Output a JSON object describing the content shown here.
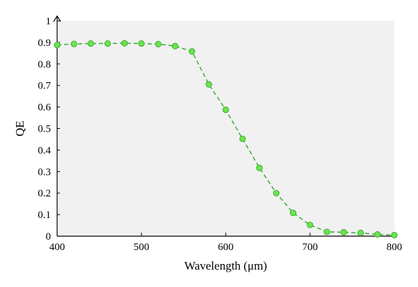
{
  "chart_data": {
    "type": "line",
    "title": "",
    "xlabel": "Wavelength (μm)",
    "ylabel": "QE",
    "xlim": [
      400,
      800
    ],
    "ylim": [
      0,
      1
    ],
    "x_ticks": [
      "400",
      "500",
      "600",
      "700",
      "800"
    ],
    "y_ticks": [
      "0",
      "0.1",
      "0.2",
      "0.3",
      "0.4",
      "0.5",
      "0.6",
      "0.7",
      "0.8",
      "0.9",
      "1"
    ],
    "grid": false,
    "legend": "none",
    "series": [
      {
        "line_style": "dashed",
        "marker": "circle",
        "color": "#3cb43c",
        "marker_color": "#66e64a",
        "x": [
          400,
          420,
          440,
          460,
          480,
          500,
          520,
          540,
          560,
          580,
          600,
          620,
          640,
          660,
          680,
          700,
          720,
          740,
          760,
          780,
          800
        ],
        "y": [
          0.888,
          0.893,
          0.895,
          0.895,
          0.896,
          0.895,
          0.892,
          0.883,
          0.858,
          0.705,
          0.587,
          0.452,
          0.317,
          0.2,
          0.108,
          0.052,
          0.02,
          0.018,
          0.015,
          0.008,
          0.005
        ]
      }
    ]
  }
}
